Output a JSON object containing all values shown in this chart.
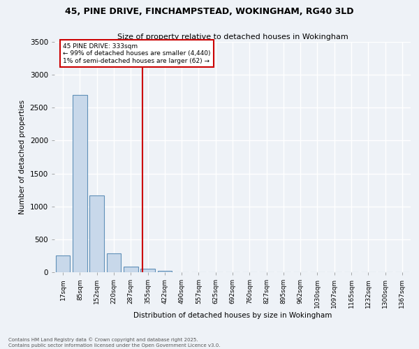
{
  "title_line1": "45, PINE DRIVE, FINCHAMPSTEAD, WOKINGHAM, RG40 3LD",
  "title_line2": "Size of property relative to detached houses in Wokingham",
  "xlabel": "Distribution of detached houses by size in Wokingham",
  "ylabel": "Number of detached properties",
  "categories": [
    "17sqm",
    "85sqm",
    "152sqm",
    "220sqm",
    "287sqm",
    "355sqm",
    "422sqm",
    "490sqm",
    "557sqm",
    "625sqm",
    "692sqm",
    "760sqm",
    "827sqm",
    "895sqm",
    "962sqm",
    "1030sqm",
    "1097sqm",
    "1165sqm",
    "1232sqm",
    "1300sqm",
    "1367sqm"
  ],
  "values": [
    250,
    2690,
    1170,
    290,
    90,
    50,
    25,
    0,
    0,
    0,
    0,
    0,
    0,
    0,
    0,
    0,
    0,
    0,
    0,
    0,
    0
  ],
  "bar_color": "#c8d8ea",
  "bar_edge_color": "#6090b8",
  "bar_width": 0.85,
  "annotation_text_line1": "45 PINE DRIVE: 333sqm",
  "annotation_text_line2": "← 99% of detached houses are smaller (4,440)",
  "annotation_text_line3": "1% of semi-detached houses are larger (62) →",
  "annotation_box_color": "#ffffff",
  "annotation_border_color": "#cc0000",
  "ylim": [
    0,
    3500
  ],
  "yticks": [
    0,
    500,
    1000,
    1500,
    2000,
    2500,
    3000,
    3500
  ],
  "bg_color": "#eef2f7",
  "grid_color": "#ffffff",
  "footer_line1": "Contains HM Land Registry data © Crown copyright and database right 2025.",
  "footer_line2": "Contains public sector information licensed under the Open Government Licence v3.0."
}
